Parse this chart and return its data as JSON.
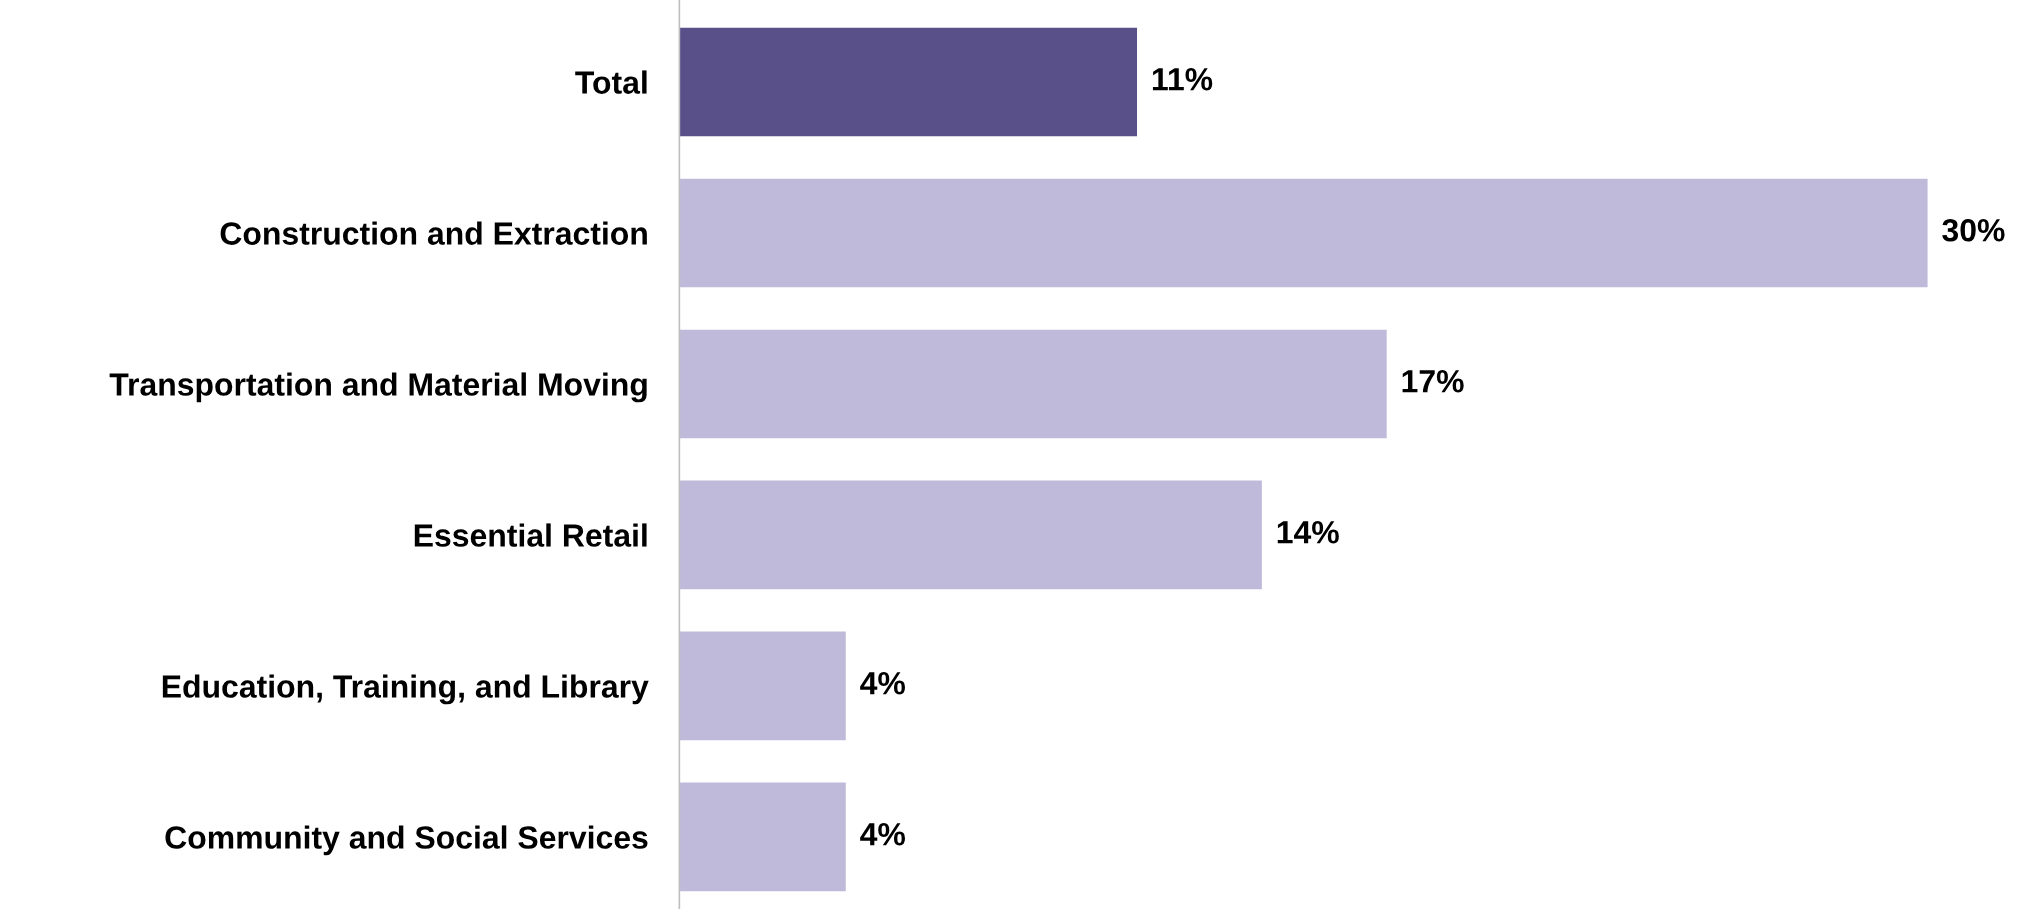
{
  "chart_data": {
    "type": "bar",
    "orientation": "horizontal",
    "categories": [
      "Total",
      "Construction and Extraction",
      "Transportation and Material Moving",
      "Essential Retail",
      "Education, Training, and Library",
      "Community and Social Services"
    ],
    "values": [
      11,
      30,
      17,
      14,
      4,
      4
    ],
    "colors": [
      "#5a5089",
      "#bfbad9",
      "#bfbad9",
      "#bfbad9",
      "#bfbad9",
      "#bfbad9"
    ],
    "value_labels": [
      "11%",
      "30%",
      "17%",
      "14%",
      "4%",
      "4%"
    ]
  }
}
